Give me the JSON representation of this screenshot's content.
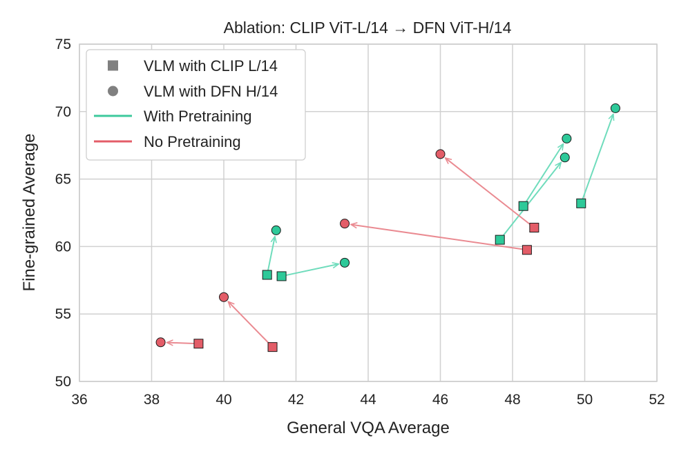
{
  "chart_data": {
    "type": "scatter",
    "title": "Ablation: CLIP ViT-L/14 → DFN ViT-H/14",
    "xlabel": "General VQA Average",
    "ylabel": "Fine-grained Average",
    "xlim": [
      36,
      52
    ],
    "ylim": [
      50,
      75
    ],
    "xticks": [
      "36",
      "38",
      "40",
      "42",
      "44",
      "46",
      "48",
      "50",
      "52"
    ],
    "yticks": [
      "50",
      "55",
      "60",
      "65",
      "70",
      "75"
    ],
    "grid": true,
    "legend_position": "top-left",
    "legend": [
      {
        "label": "VLM with CLIP L/14",
        "marker": "square",
        "color": "#808080"
      },
      {
        "label": "VLM with DFN H/14",
        "marker": "circle",
        "color": "#808080"
      },
      {
        "label": "With Pretraining",
        "marker": "line",
        "color": "#3cc99c"
      },
      {
        "label": "No Pretraining",
        "marker": "line",
        "color": "#e35d68"
      }
    ],
    "colors": {
      "with_pretraining": "#2ec999",
      "no_pretraining": "#e35d68",
      "with_arrow": "#6fdcbc",
      "no_arrow": "#ea8a91"
    },
    "series": [
      {
        "name": "With Pretraining",
        "pairs": [
          {
            "clip": [
              41.2,
              57.9
            ],
            "dfn": [
              41.45,
              61.2
            ]
          },
          {
            "clip": [
              41.6,
              57.8
            ],
            "dfn": [
              43.35,
              58.8
            ]
          },
          {
            "clip": [
              47.65,
              60.5
            ],
            "dfn": [
              49.45,
              66.6
            ]
          },
          {
            "clip": [
              48.3,
              63.0
            ],
            "dfn": [
              49.5,
              68.0
            ]
          },
          {
            "clip": [
              49.9,
              63.2
            ],
            "dfn": [
              50.85,
              70.25
            ]
          }
        ]
      },
      {
        "name": "No Pretraining",
        "pairs": [
          {
            "clip": [
              39.3,
              52.8
            ],
            "dfn": [
              38.25,
              52.9
            ]
          },
          {
            "clip": [
              41.35,
              52.55
            ],
            "dfn": [
              40.0,
              56.25
            ]
          },
          {
            "clip": [
              48.4,
              59.75
            ],
            "dfn": [
              43.35,
              61.7
            ]
          },
          {
            "clip": [
              48.6,
              61.4
            ],
            "dfn": [
              46.0,
              66.85
            ]
          }
        ]
      }
    ]
  }
}
